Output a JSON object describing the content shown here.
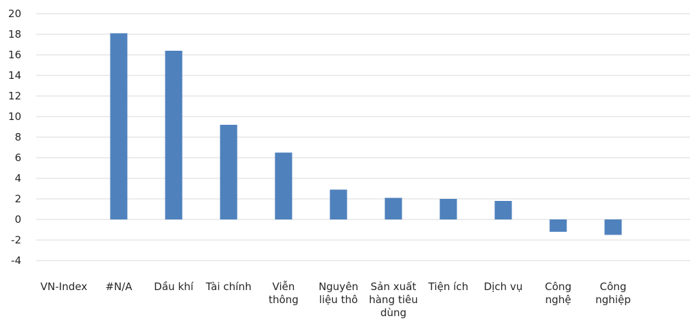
{
  "chart_data": {
    "type": "bar",
    "title": "",
    "xlabel": "",
    "ylabel": "",
    "ylim": [
      -4,
      20
    ],
    "y_ticks": [
      20,
      18,
      16,
      14,
      12,
      10,
      8,
      6,
      4,
      2,
      0,
      -2,
      -4
    ],
    "grid": true,
    "legend": "none",
    "bar_color": "#4f81bd",
    "categories": [
      [
        "VN-Index"
      ],
      [
        "#N/A"
      ],
      [
        "Dầu khí"
      ],
      [
        "Tài chính"
      ],
      [
        "Viễn",
        "thông"
      ],
      [
        "Nguyên",
        "liệu thô"
      ],
      [
        "Sản xuất",
        "hàng tiêu",
        "dùng"
      ],
      [
        "Tiện ích"
      ],
      [
        "Dịch vụ"
      ],
      [
        "Công",
        "nghệ"
      ],
      [
        "Công",
        "nghiệp"
      ]
    ],
    "values": [
      0,
      18.1,
      16.4,
      9.2,
      6.5,
      2.9,
      2.1,
      2.0,
      1.8,
      -1.2,
      -1.5
    ]
  }
}
